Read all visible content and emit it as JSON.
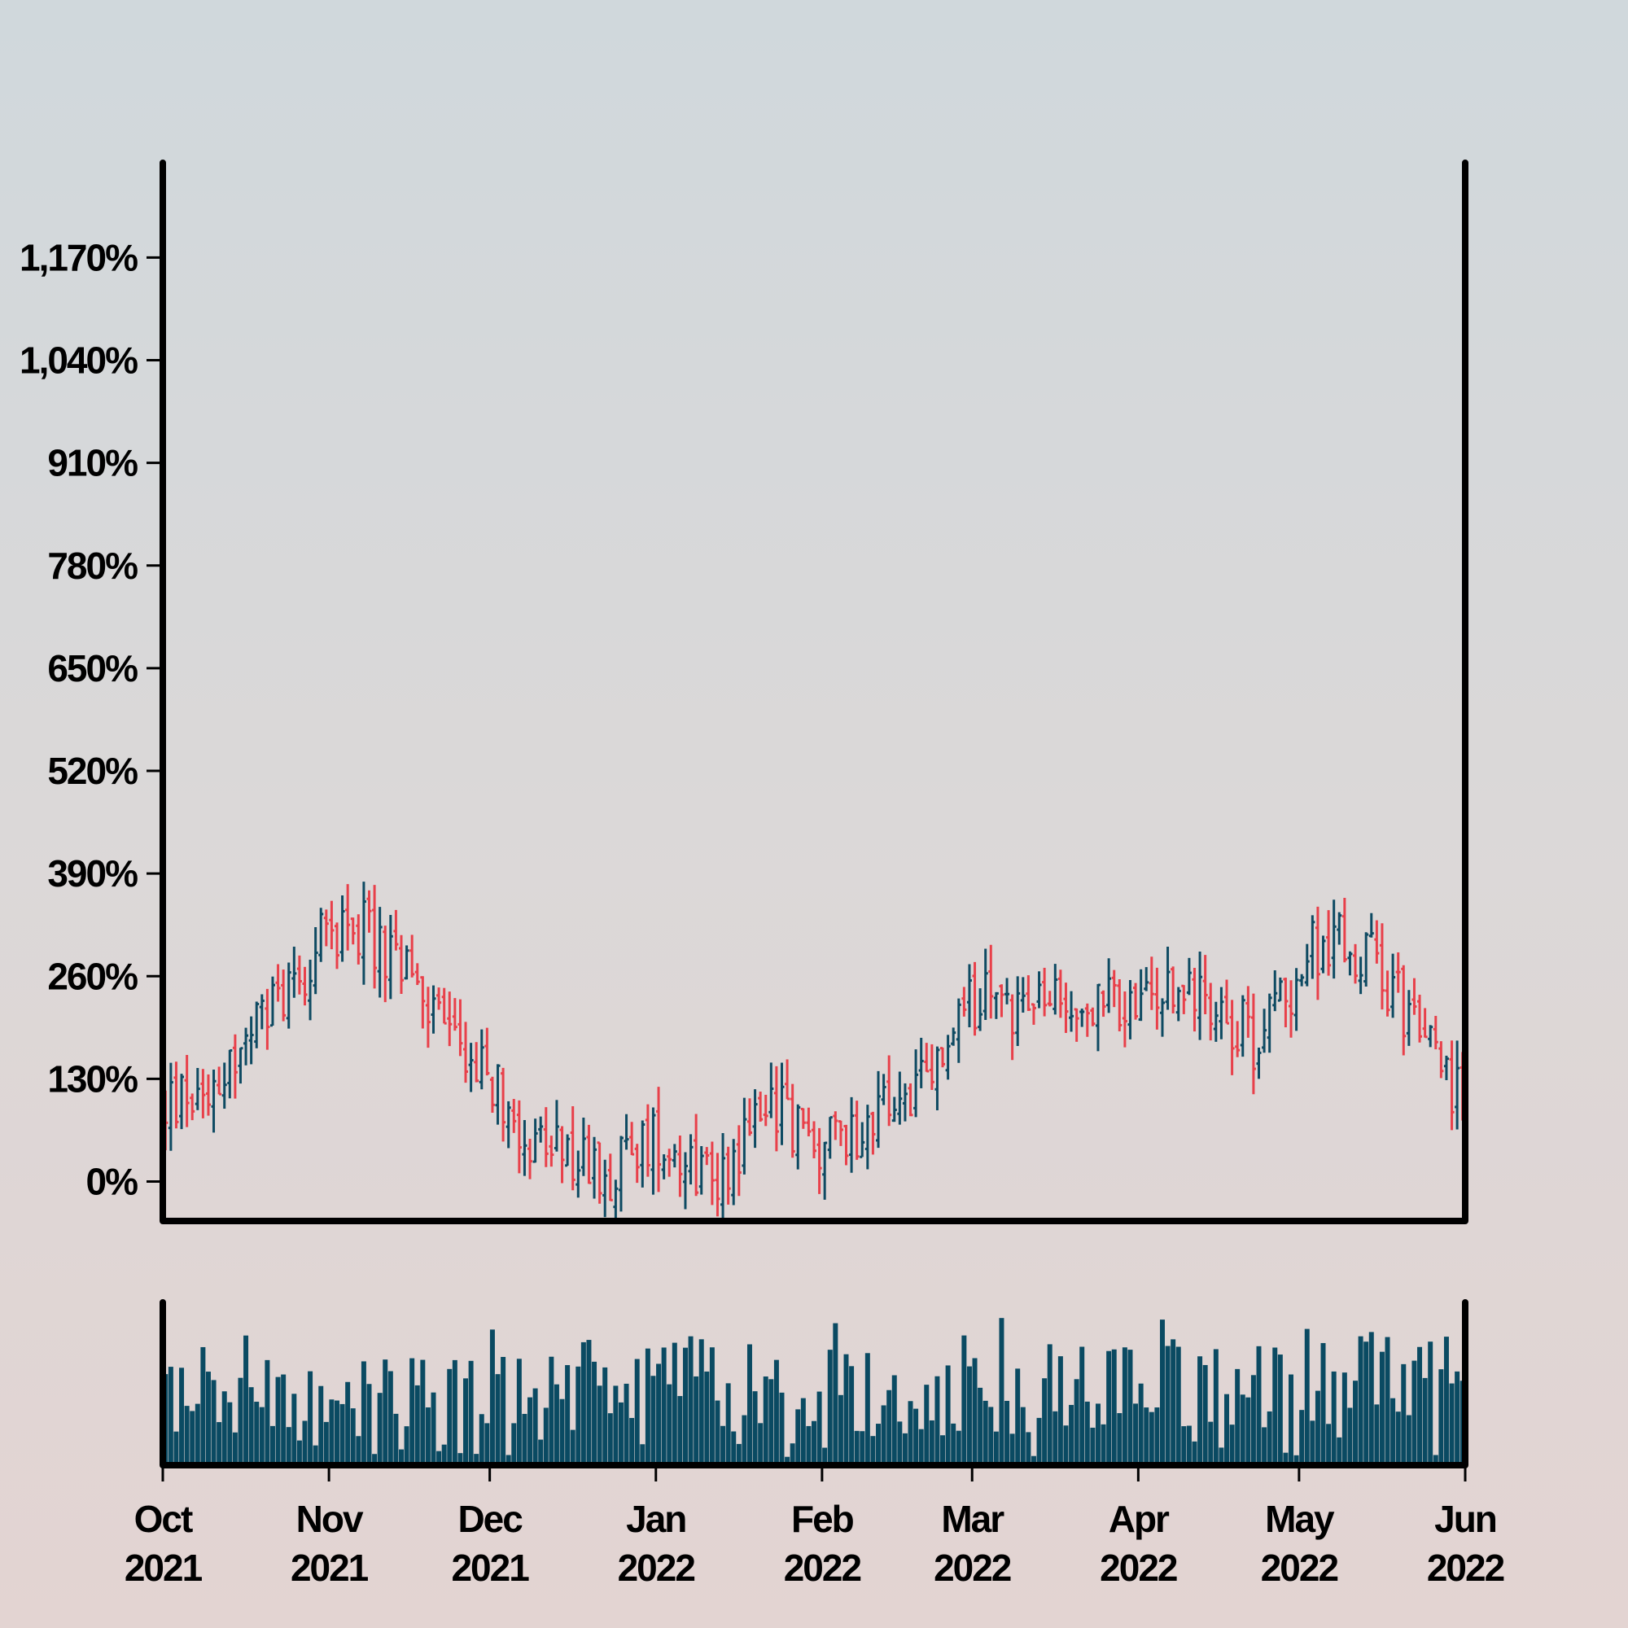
{
  "chart_data": {
    "type": "ohlc",
    "title": "",
    "xlabel": "",
    "ylabel": "",
    "y_axis": {
      "min": -50,
      "max": 1290,
      "ticks": [
        {
          "value": 0,
          "label": "0%"
        },
        {
          "value": 130,
          "label": "130%"
        },
        {
          "value": 260,
          "label": "260%"
        },
        {
          "value": 390,
          "label": "390%"
        },
        {
          "value": 520,
          "label": "520%"
        },
        {
          "value": 650,
          "label": "650%"
        },
        {
          "value": 780,
          "label": "780%"
        },
        {
          "value": 910,
          "label": "910%"
        },
        {
          "value": 1040,
          "label": "1,040%"
        },
        {
          "value": 1170,
          "label": "1,170%"
        }
      ]
    },
    "x_axis": {
      "start": "2021-10-01",
      "end": "2022-06-01",
      "ticks": [
        {
          "date": "2021-10-01",
          "label": [
            "Oct",
            "2021"
          ]
        },
        {
          "date": "2021-11-01",
          "label": [
            "Nov",
            "2021"
          ]
        },
        {
          "date": "2021-12-01",
          "label": [
            "Dec",
            "2021"
          ]
        },
        {
          "date": "2022-01-01",
          "label": [
            "Jan",
            "2022"
          ]
        },
        {
          "date": "2022-02-01",
          "label": [
            "Feb",
            "2022"
          ]
        },
        {
          "date": "2022-03-01",
          "label": [
            "Mar",
            "2022"
          ]
        },
        {
          "date": "2022-04-01",
          "label": [
            "Apr",
            "2022"
          ]
        },
        {
          "date": "2022-05-01",
          "label": [
            "May",
            "2022"
          ]
        },
        {
          "date": "2022-06-01",
          "label": [
            "Jun",
            "2022"
          ]
        }
      ]
    },
    "colors": {
      "up": "#0e4a62",
      "down": "#e8404a",
      "volume": "#0a4a62",
      "axis": "#000000"
    },
    "grid": false,
    "legend": "none",
    "trend_anchors": [
      {
        "date": "2021-10-01",
        "value": 90
      },
      {
        "date": "2021-10-15",
        "value": 160
      },
      {
        "date": "2021-10-25",
        "value": 260
      },
      {
        "date": "2021-11-04",
        "value": 340
      },
      {
        "date": "2021-11-15",
        "value": 260
      },
      {
        "date": "2021-11-28",
        "value": 150
      },
      {
        "date": "2021-12-10",
        "value": 40
      },
      {
        "date": "2021-12-22",
        "value": 10
      },
      {
        "date": "2022-01-01",
        "value": 60
      },
      {
        "date": "2022-01-12",
        "value": 5
      },
      {
        "date": "2022-01-22",
        "value": 110
      },
      {
        "date": "2022-01-30",
        "value": 40
      },
      {
        "date": "2022-02-10",
        "value": 80
      },
      {
        "date": "2022-02-20",
        "value": 120
      },
      {
        "date": "2022-03-01",
        "value": 230
      },
      {
        "date": "2022-03-15",
        "value": 220
      },
      {
        "date": "2022-04-01",
        "value": 220
      },
      {
        "date": "2022-04-12",
        "value": 250
      },
      {
        "date": "2022-04-22",
        "value": 180
      },
      {
        "date": "2022-05-05",
        "value": 310
      },
      {
        "date": "2022-05-15",
        "value": 280
      },
      {
        "date": "2022-05-22",
        "value": 200
      },
      {
        "date": "2022-05-31",
        "value": 100
      }
    ],
    "volume_axis": {
      "min": 0,
      "max": 1
    },
    "bar_count": 243
  }
}
